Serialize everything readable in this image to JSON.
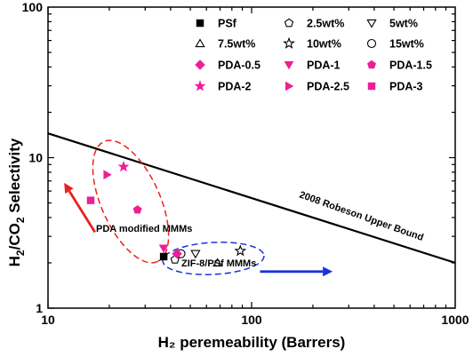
{
  "chart_data": {
    "type": "scatter",
    "title": "",
    "xlabel": "H₂ peremeability (Barrers)",
    "ylabel_main": "H",
    "ylabel_sub1": "2",
    "ylabel_mid": "/CO",
    "ylabel_sub2": "2",
    "ylabel_tail": " Selectivity",
    "x_scale": "log",
    "y_scale": "log",
    "xlim": [
      10,
      1000
    ],
    "ylim": [
      1,
      100
    ],
    "x_ticks": [
      {
        "value": 10,
        "label": "10"
      },
      {
        "value": 100,
        "label": "100"
      },
      {
        "value": 1000,
        "label": "1000"
      }
    ],
    "y_ticks": [
      {
        "value": 1,
        "label": "1"
      },
      {
        "value": 10,
        "label": "10"
      },
      {
        "value": 100,
        "label": "100"
      }
    ],
    "grid": false,
    "legend_position": "top-right",
    "upper_bound": {
      "label": "2008 Robeson Upper Bound",
      "x": [
        10,
        1000
      ],
      "y": [
        14.5,
        2.0
      ]
    },
    "series": [
      {
        "name": "PSf",
        "marker": "square",
        "filled": true,
        "color": "#000000",
        "points": [
          [
            37,
            2.2
          ]
        ]
      },
      {
        "name": "2.5wt%",
        "marker": "pentagon",
        "filled": false,
        "color": "#000000",
        "points": [
          [
            42,
            2.1
          ]
        ]
      },
      {
        "name": "5wt%",
        "marker": "triangle-down",
        "filled": false,
        "color": "#000000",
        "points": [
          [
            53,
            2.3
          ]
        ]
      },
      {
        "name": "7.5wt%",
        "marker": "triangle-up",
        "filled": false,
        "color": "#000000",
        "points": [
          [
            68,
            2.0
          ]
        ]
      },
      {
        "name": "10wt%",
        "marker": "star",
        "filled": false,
        "color": "#000000",
        "points": [
          [
            88,
            2.4
          ]
        ]
      },
      {
        "name": "15wt%",
        "marker": "circle",
        "filled": false,
        "color": "#000000",
        "points": [
          [
            45,
            2.3
          ]
        ]
      },
      {
        "name": "PDA-0.5",
        "marker": "diamond",
        "filled": true,
        "color": "#ee1e96",
        "points": [
          [
            43,
            2.3
          ]
        ]
      },
      {
        "name": "PDA-1",
        "marker": "triangle-down",
        "filled": true,
        "color": "#ee1e96",
        "points": [
          [
            37,
            2.5
          ]
        ]
      },
      {
        "name": "PDA-1.5",
        "marker": "pentagon",
        "filled": true,
        "color": "#ee1e96",
        "points": [
          [
            27.5,
            4.5
          ]
        ]
      },
      {
        "name": "PDA-2",
        "marker": "star",
        "filled": true,
        "color": "#ee1e96",
        "points": [
          [
            23.5,
            8.7
          ]
        ]
      },
      {
        "name": "PDA-2.5",
        "marker": "triangle-right",
        "filled": true,
        "color": "#ee1e96",
        "points": [
          [
            19.5,
            7.7
          ]
        ]
      },
      {
        "name": "PDA-3",
        "marker": "square",
        "filled": true,
        "color": "#ee1e96",
        "points": [
          [
            16.2,
            5.2
          ]
        ]
      }
    ],
    "annotations": [
      {
        "text": "PDA modified MMMs",
        "color": "#000000"
      },
      {
        "text": "ZIF-8/PSf MMMs",
        "color": "#000000"
      }
    ],
    "arrows": [
      {
        "name": "red-arrow",
        "color": "#e8211d",
        "from": [
          17,
          3.2
        ],
        "to": [
          12,
          6.8
        ]
      },
      {
        "name": "blue-arrow",
        "color": "#1a33d9",
        "from": [
          110,
          1.75
        ],
        "to": [
          250,
          1.75
        ]
      }
    ],
    "ellipses": [
      {
        "name": "red-ellipse",
        "color": "#e8211d"
      },
      {
        "name": "blue-ellipse",
        "color": "#1a33d9"
      }
    ]
  }
}
